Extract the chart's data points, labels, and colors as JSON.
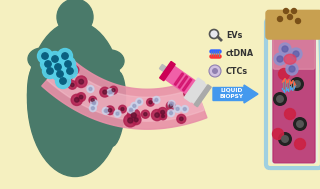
{
  "bg_color": "#f5f0c0",
  "figure_size": [
    3.2,
    1.89
  ],
  "dpi": 100,
  "elements": {
    "body_color": "#4a7a6a",
    "tumor_color": "#55d0e8",
    "tumor_dark": "#0a6080",
    "vessel_pink": "#e890a8",
    "vessel_dark_red": "#b02050",
    "vessel_light": "#f0b8c8",
    "arrow_color": "#4499ee",
    "labels": [
      "CTCs",
      "ctDNA",
      "EVs"
    ],
    "label_color": "#333333",
    "tube_liquid": "#b83070",
    "cork_color": "#c8a050",
    "syringe_color": "#f050a0"
  }
}
